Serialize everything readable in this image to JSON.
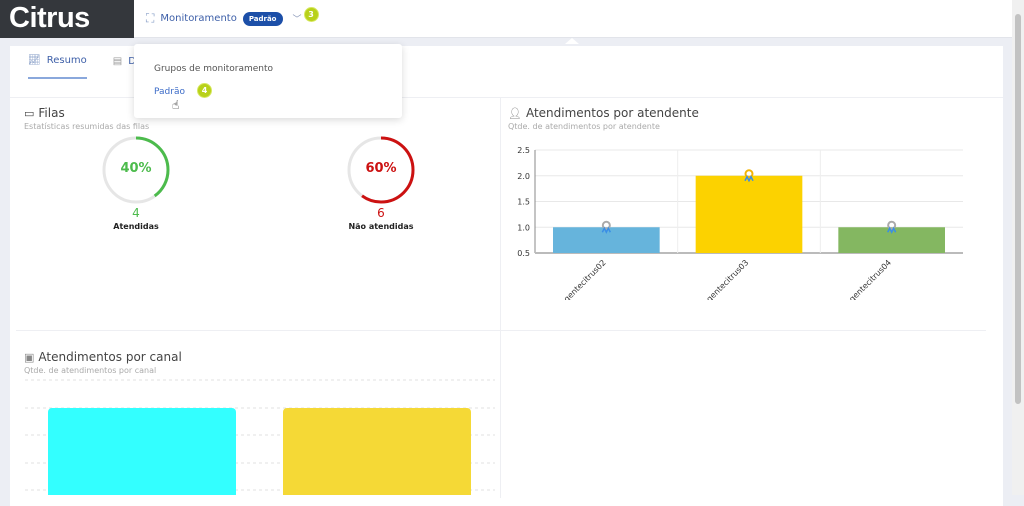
{
  "app": {
    "logo": "Citrus"
  },
  "header": {
    "title": "Monitoramento",
    "badge": "Padrão",
    "step_badge": "3"
  },
  "dropdown": {
    "heading": "Grupos de monitoramento",
    "items": [
      {
        "label": "Padrão"
      }
    ],
    "step_badge": "4"
  },
  "tabs": [
    {
      "label": "Resumo",
      "active": true
    },
    {
      "label": "De"
    }
  ],
  "filas": {
    "title": "Filas",
    "subtitle": "Estatísticas resumidas das filas",
    "stats": [
      {
        "percent": "40%",
        "percent_value": 40,
        "count": "4",
        "label": "Atendidas",
        "color": "#4cbb4c"
      },
      {
        "percent": "60%",
        "percent_value": 60,
        "count": "6",
        "label": "Não atendidas",
        "color": "#cc1111"
      }
    ]
  },
  "chart_data": [
    {
      "type": "bar",
      "title": "Atendimentos por atendente",
      "subtitle": "Qtde. de atendimentos por atendente",
      "categories": [
        "agentecitrus02",
        "agentecitrus03",
        "agentecitrus04"
      ],
      "values": [
        1,
        2,
        1
      ],
      "colors": [
        "#66b4dc",
        "#fcd200",
        "#84b761"
      ],
      "ylim": [
        0.5,
        2.5
      ],
      "yticks": [
        "2.5",
        "2.0",
        "1.5",
        "1.0",
        "0.5"
      ],
      "xlabel": "",
      "ylabel": "",
      "grid": true
    },
    {
      "type": "bar",
      "title": "Atendimentos por canal",
      "subtitle": "Qtde. de atendimentos por canal",
      "categories": [
        "",
        ""
      ],
      "values": [
        1,
        1
      ],
      "colors": [
        "#33ffff",
        "#f5d936"
      ]
    }
  ]
}
